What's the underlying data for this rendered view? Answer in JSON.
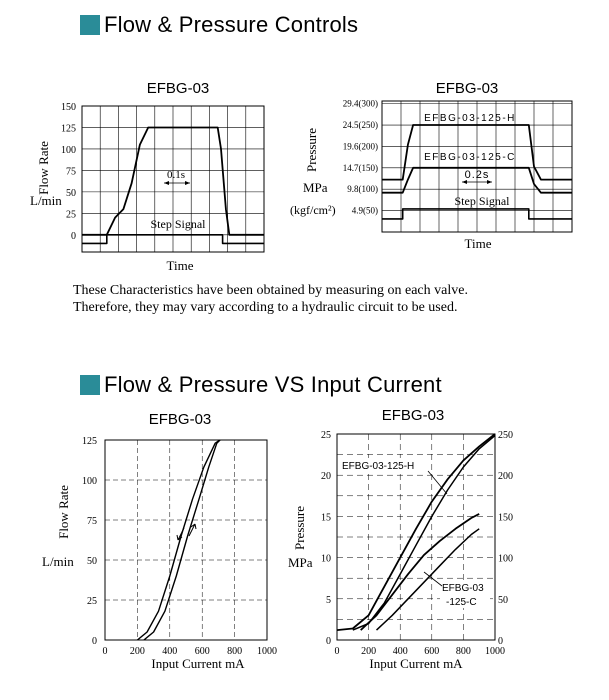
{
  "sections": [
    {
      "title": "Flow & Pressure Controls",
      "accent_color": "#2a8c98"
    },
    {
      "title": "Flow & Pressure VS Input Current",
      "accent_color": "#2a8c98"
    }
  ],
  "note": {
    "line1": "These Characteristics have been obtained by measuring on each valve.",
    "line2": "Therefore, they may vary according to a hydraulic circuit to be used."
  },
  "chart_data": [
    {
      "type": "line",
      "title": "EFBG-03",
      "xlabel": "Time",
      "ylabel": "Flow Rate",
      "yunit": "L/min",
      "yticks": [
        0,
        25,
        50,
        75,
        100,
        125,
        150
      ],
      "ylim": [
        -20,
        150
      ],
      "grid": true,
      "annotations": [
        "0.1s",
        "Step Signal"
      ],
      "series": [
        {
          "values": [
            [
              0,
              0
            ],
            [
              1.5,
              0
            ],
            [
              2.0,
              20
            ],
            [
              2.5,
              30
            ],
            [
              3.0,
              60
            ],
            [
              3.5,
              105
            ],
            [
              4.0,
              125
            ],
            [
              8.2,
              125
            ],
            [
              8.4,
              100
            ],
            [
              8.7,
              30
            ],
            [
              8.9,
              0
            ],
            [
              11,
              0
            ]
          ]
        },
        {
          "values": [
            [
              0,
              -10
            ],
            [
              1.5,
              -10
            ],
            [
              1.5,
              0
            ],
            [
              8.5,
              0
            ],
            [
              8.5,
              -10
            ],
            [
              11,
              -10
            ]
          ]
        }
      ]
    },
    {
      "type": "line",
      "title": "EFBG-03",
      "xlabel": "Time",
      "ylabel": "Pressure",
      "yunit": "MPa",
      "yunit2": "(kgf/cm²)",
      "yticks": [
        "4.9(50)",
        "9.8(100)",
        "14.7(150)",
        "19.6(200)",
        "24.5(250)",
        "29.4(300)"
      ],
      "ylim": [
        0,
        30
      ],
      "grid": true,
      "annotations": [
        "0.2s",
        "Step Signal"
      ],
      "series": [
        {
          "name": "EFBG-03-125-H",
          "values": [
            [
              0,
              12.0
            ],
            [
              1.2,
              12.0
            ],
            [
              1.5,
              20
            ],
            [
              1.8,
              24.5
            ],
            [
              8.5,
              24.5
            ],
            [
              8.8,
              15
            ],
            [
              9.2,
              12.0
            ],
            [
              11,
              12.0
            ]
          ]
        },
        {
          "name": "EFBG-03-125-C",
          "values": [
            [
              0,
              9.0
            ],
            [
              1.2,
              9.0
            ],
            [
              1.5,
              12
            ],
            [
              1.8,
              14.7
            ],
            [
              8.5,
              14.7
            ],
            [
              8.8,
              11
            ],
            [
              9.2,
              9.0
            ],
            [
              11,
              9.0
            ]
          ]
        },
        {
          "values": [
            [
              0,
              3.0
            ],
            [
              1.2,
              3.0
            ],
            [
              1.2,
              5.3
            ],
            [
              8.5,
              5.3
            ],
            [
              8.5,
              3.0
            ],
            [
              11,
              3.0
            ]
          ]
        }
      ]
    },
    {
      "type": "line",
      "title": "EFBG-03",
      "xlabel": "Input Current   mA",
      "ylabel": "Flow Rate",
      "yunit": "L/min",
      "xticks": [
        200,
        400,
        600,
        800,
        1000
      ],
      "yticks": [
        0,
        25,
        50,
        75,
        100,
        125
      ],
      "xlim": [
        0,
        1000
      ],
      "ylim": [
        0,
        125
      ],
      "grid": true,
      "series": [
        {
          "values": [
            [
              200,
              0
            ],
            [
              260,
              5
            ],
            [
              330,
              18
            ],
            [
              400,
              40
            ],
            [
              470,
              65
            ],
            [
              540,
              88
            ],
            [
              610,
              108
            ],
            [
              680,
              123
            ],
            [
              710,
              125
            ]
          ]
        },
        {
          "values": [
            [
              240,
              0
            ],
            [
              300,
              5
            ],
            [
              370,
              18
            ],
            [
              440,
              40
            ],
            [
              510,
              65
            ],
            [
              580,
              88
            ],
            [
              640,
              108
            ],
            [
              690,
              123
            ],
            [
              710,
              125
            ]
          ]
        }
      ]
    },
    {
      "type": "line",
      "title": "EFBG-03",
      "xlabel": "Input Current   mA",
      "ylabel": "Pressure",
      "yunit": "MPa",
      "xticks": [
        200,
        400,
        600,
        800,
        1000
      ],
      "yticks": [
        0,
        5,
        10,
        15,
        20,
        25
      ],
      "yticks2": [
        0,
        50,
        100,
        150,
        200,
        250
      ],
      "xlim": [
        0,
        1000
      ],
      "ylim": [
        0,
        25
      ],
      "grid": true,
      "series": [
        {
          "name": "EFBG-03-125-H",
          "values": [
            [
              0,
              1.2
            ],
            [
              100,
              1.4
            ],
            [
              200,
              3.0
            ],
            [
              300,
              6.5
            ],
            [
              400,
              10.0
            ],
            [
              500,
              13.5
            ],
            [
              600,
              16.8
            ],
            [
              700,
              19.5
            ],
            [
              800,
              21.8
            ],
            [
              900,
              23.5
            ],
            [
              1000,
              25
            ]
          ]
        },
        {
          "values": [
            [
              100,
              1.2
            ],
            [
              200,
              2.0
            ],
            [
              300,
              4.5
            ],
            [
              400,
              8.0
            ],
            [
              500,
              11.5
            ],
            [
              600,
              15.0
            ],
            [
              700,
              18.2
            ],
            [
              800,
              21.0
            ],
            [
              900,
              23.2
            ],
            [
              1000,
              24.8
            ]
          ]
        },
        {
          "name": "EFBG-03-125-C",
          "values": [
            [
              150,
              1.2
            ],
            [
              250,
              3.0
            ],
            [
              350,
              5.5
            ],
            [
              450,
              8.0
            ],
            [
              550,
              10.3
            ],
            [
              650,
              12.0
            ],
            [
              750,
              13.5
            ],
            [
              850,
              14.8
            ],
            [
              900,
              15.3
            ]
          ]
        },
        {
          "values": [
            [
              250,
              1.2
            ],
            [
              350,
              3.0
            ],
            [
              450,
              5.0
            ],
            [
              550,
              7.0
            ],
            [
              650,
              9.0
            ],
            [
              750,
              11.0
            ],
            [
              850,
              12.8
            ],
            [
              900,
              13.5
            ]
          ]
        }
      ]
    }
  ],
  "labels": {
    "c1_title": "EFBG-03",
    "c1_ylabel": "Flow Rate",
    "c1_yunit": "L/min",
    "c1_xlabel": "Time",
    "c1_time_mark": "0.1s",
    "c1_signal": "Step Signal",
    "c2_title": "EFBG-03",
    "c2_ylabel": "Pressure",
    "c2_yunit": "MPa",
    "c2_yunit2": "(kgf/cm²)",
    "c2_xlabel": "Time",
    "c2_h_label": "EFBG-03-125-H",
    "c2_c_label": "EFBG-03-125-C",
    "c2_time_mark": "0.2s",
    "c2_signal": "Step Signal",
    "c3_title": "EFBG-03",
    "c3_ylabel": "Flow Rate",
    "c3_yunit": "L/min",
    "c3_xlabel": "Input Current   mA",
    "c4_title": "EFBG-03",
    "c4_ylabel": "Pressure",
    "c4_yunit": "MPa",
    "c4_xlabel": "Input Current   mA",
    "c4_h_label": "EFBG-03-125-H",
    "c4_c_label1": "EFBG-03",
    "c4_c_label2": "-125-C"
  },
  "ticks": {
    "c1_y": [
      "0",
      "25",
      "50",
      "75",
      "100",
      "125",
      "150"
    ],
    "c2_y": [
      "4.9(50)",
      "9.8(100)",
      "14.7(150)",
      "19.6(200)",
      "24.5(250)",
      "29.4(300)"
    ],
    "c3_y": [
      "0",
      "25",
      "50",
      "75",
      "100",
      "125"
    ],
    "c3_x": [
      "0",
      "200",
      "400",
      "600",
      "800",
      "1000"
    ],
    "c4_y": [
      "0",
      "5",
      "10",
      "15",
      "20",
      "25"
    ],
    "c4_y2": [
      "0",
      "50",
      "100",
      "150",
      "200",
      "250"
    ],
    "c4_x": [
      "0",
      "200",
      "400",
      "600",
      "800",
      "1000"
    ]
  }
}
